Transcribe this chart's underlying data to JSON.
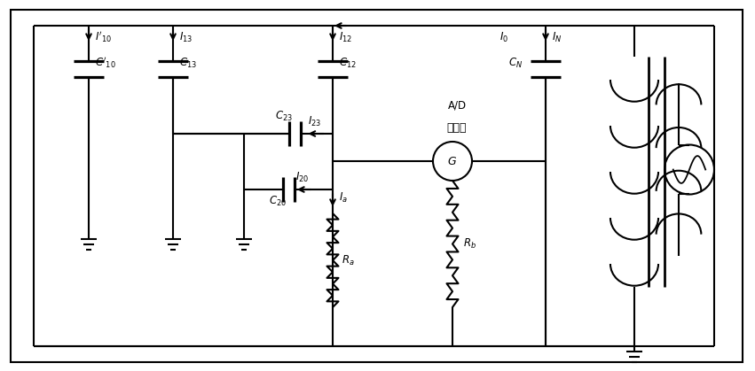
{
  "fig_width": 8.51,
  "fig_height": 4.19,
  "dpi": 100,
  "line_color": "black",
  "line_width": 1.5,
  "bg_color": "white"
}
